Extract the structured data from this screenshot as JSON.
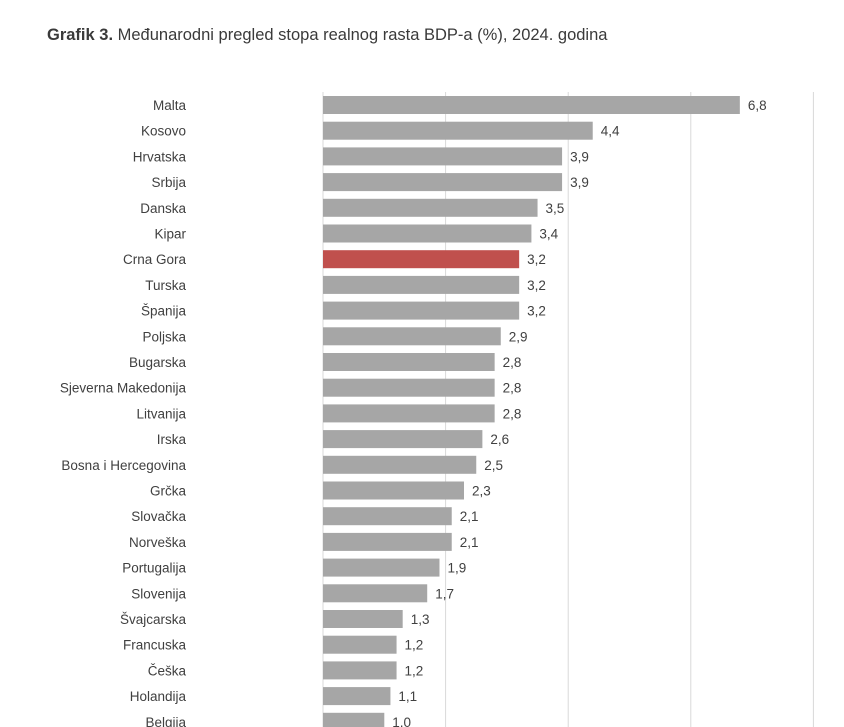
{
  "header": {
    "title_prefix": "Grafik 3.",
    "title_text": " Međunarodni pregled stopa realnog rasta BDP-a (%), 2024. godina"
  },
  "chart_data": {
    "type": "bar",
    "orientation": "horizontal",
    "categories": [
      "Malta",
      "Kosovo",
      "Hrvatska",
      "Srbija",
      "Danska",
      "Kipar",
      "Crna Gora",
      "Turska",
      "Španija",
      "Poljska",
      "Bugarska",
      "Sjeverna Makedonija",
      "Litvanija",
      "Irska",
      "Bosna i Hercegovina",
      "Grčka",
      "Slovačka",
      "Norveška",
      "Portugalija",
      "Slovenija",
      "Švajcarska",
      "Francuska",
      "Češka",
      "Holandija",
      "Belgija"
    ],
    "values": [
      6.8,
      4.4,
      3.9,
      3.9,
      3.5,
      3.4,
      3.2,
      3.2,
      3.2,
      2.9,
      2.8,
      2.8,
      2.8,
      2.6,
      2.5,
      2.3,
      2.1,
      2.1,
      1.9,
      1.7,
      1.3,
      1.2,
      1.2,
      1.1,
      1.0
    ],
    "value_labels": [
      "6,8",
      "4,4",
      "3,9",
      "3,9",
      "3,5",
      "3,4",
      "3,2",
      "3,2",
      "3,2",
      "2,9",
      "2,8",
      "2,8",
      "2,8",
      "2,6",
      "2,5",
      "2,3",
      "2,1",
      "2,1",
      "1,9",
      "1,7",
      "1,3",
      "1,2",
      "1,2",
      "1,1",
      "1,0"
    ],
    "highlight_category": "Crna Gora",
    "colors": {
      "bar": "#a6a6a6",
      "highlight": "#c0504d",
      "grid": "#d9d9d9"
    },
    "xlim": [
      0,
      8
    ],
    "grid": true,
    "title": "Međunarodni pregled stopa realnog rasta BDP-a (%), 2024. godina"
  }
}
